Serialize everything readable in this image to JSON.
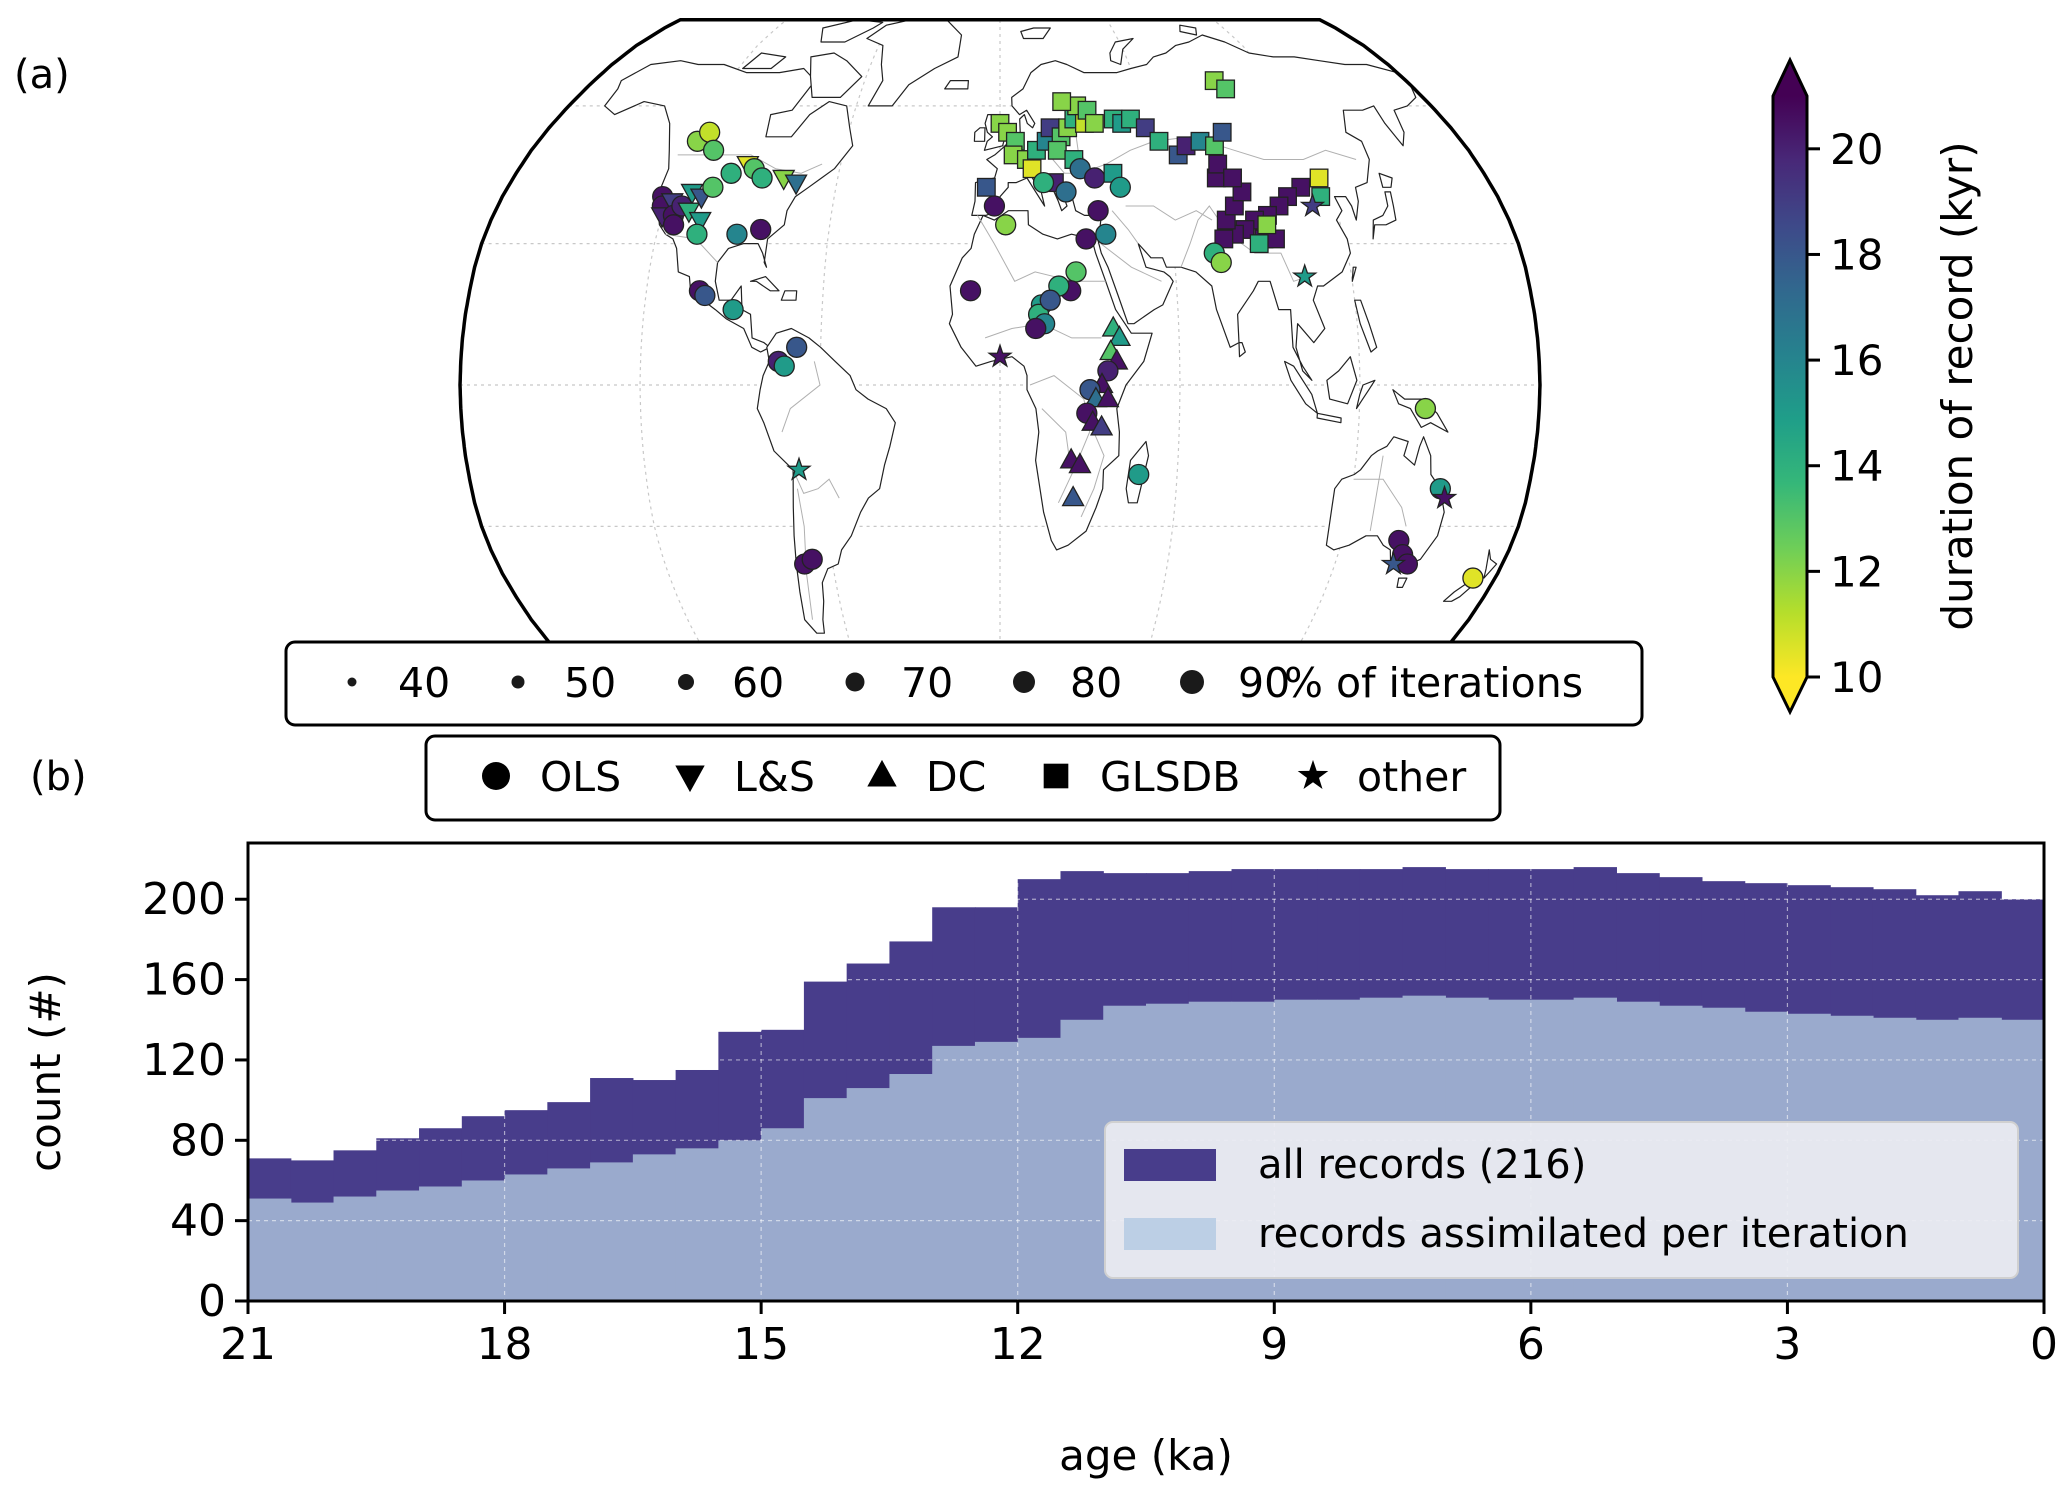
{
  "panel_a": {
    "label": "(a)",
    "size_legend": {
      "items": [
        {
          "label": "40",
          "value": 40
        },
        {
          "label": "50",
          "value": 50
        },
        {
          "label": "60",
          "value": 60
        },
        {
          "label": "70",
          "value": 70
        },
        {
          "label": "80",
          "value": 80
        },
        {
          "label": "90",
          "value": 90
        }
      ],
      "suffix": "% of iterations"
    },
    "marker_legend": [
      {
        "label": "OLS",
        "shape": "circle"
      },
      {
        "label": "L&S",
        "shape": "triangle-down"
      },
      {
        "label": "DC",
        "shape": "triangle-up"
      },
      {
        "label": "GLSDB",
        "shape": "square"
      },
      {
        "label": "other",
        "shape": "star"
      }
    ],
    "colorbar": {
      "label": "duration of record (kyr)",
      "min": 10,
      "max": 21,
      "ticks": [
        "10",
        "12",
        "14",
        "16",
        "18",
        "20"
      ],
      "colors": [
        "#fde725",
        "#b5de2b",
        "#6ece58",
        "#35b779",
        "#1f9e89",
        "#26828e",
        "#31688e",
        "#3e4989",
        "#482878",
        "#440154"
      ]
    },
    "records": [
      {
        "lon": -122,
        "lat": 40,
        "shape": "circle",
        "dur": 20.5
      },
      {
        "lon": -121,
        "lat": 38,
        "shape": "circle",
        "dur": 20.5
      },
      {
        "lon": -120,
        "lat": 36,
        "shape": "triangle-down",
        "dur": 20
      },
      {
        "lon": -118,
        "lat": 39,
        "shape": "triangle-down",
        "dur": 19
      },
      {
        "lon": -116,
        "lat": 36,
        "shape": "circle",
        "dur": 20.5
      },
      {
        "lon": -114,
        "lat": 38,
        "shape": "circle",
        "dur": 20
      },
      {
        "lon": -115,
        "lat": 34,
        "shape": "circle",
        "dur": 20.5
      },
      {
        "lon": -112,
        "lat": 41,
        "shape": "triangle-down",
        "dur": 15
      },
      {
        "lon": -111,
        "lat": 37,
        "shape": "triangle-down",
        "dur": 14
      },
      {
        "lon": -108,
        "lat": 40,
        "shape": "triangle-down",
        "dur": 18
      },
      {
        "lon": -106,
        "lat": 35,
        "shape": "triangle-down",
        "dur": 15
      },
      {
        "lon": -105,
        "lat": 42,
        "shape": "circle",
        "dur": 13
      },
      {
        "lon": -118,
        "lat": 52,
        "shape": "circle",
        "dur": 12
      },
      {
        "lon": -115,
        "lat": 54,
        "shape": "circle",
        "dur": 11
      },
      {
        "lon": -110,
        "lat": 50,
        "shape": "circle",
        "dur": 13
      },
      {
        "lon": -100,
        "lat": 45,
        "shape": "circle",
        "dur": 14
      },
      {
        "lon": -95,
        "lat": 47,
        "shape": "triangle-down",
        "dur": 10.5
      },
      {
        "lon": -92,
        "lat": 46,
        "shape": "circle",
        "dur": 13
      },
      {
        "lon": -88,
        "lat": 44,
        "shape": "circle",
        "dur": 14
      },
      {
        "lon": -80,
        "lat": 44,
        "shape": "triangle-down",
        "dur": 12
      },
      {
        "lon": -75,
        "lat": 43,
        "shape": "triangle-down",
        "dur": 17
      },
      {
        "lon": -106,
        "lat": 32,
        "shape": "circle",
        "dur": 14
      },
      {
        "lon": -92,
        "lat": 32,
        "shape": "circle",
        "dur": 16
      },
      {
        "lon": -84,
        "lat": 33,
        "shape": "circle",
        "dur": 20.5
      },
      {
        "lon": -102,
        "lat": 20,
        "shape": "circle",
        "dur": 20.5
      },
      {
        "lon": -100,
        "lat": 19,
        "shape": "circle",
        "dur": 18
      },
      {
        "lon": -90,
        "lat": 16,
        "shape": "circle",
        "dur": 15
      },
      {
        "lon": -74,
        "lat": 5,
        "shape": "circle",
        "dur": 20
      },
      {
        "lon": -72,
        "lat": 4,
        "shape": "circle",
        "dur": 15
      },
      {
        "lon": -68,
        "lat": 8,
        "shape": "circle",
        "dur": 18
      },
      {
        "lon": -68,
        "lat": -18,
        "shape": "star",
        "dur": 15
      },
      {
        "lon": -70,
        "lat": -38,
        "shape": "circle",
        "dur": 20.5
      },
      {
        "lon": -67,
        "lat": -37,
        "shape": "circle",
        "dur": 20.5
      },
      {
        "lon": -5,
        "lat": 42,
        "shape": "square",
        "dur": 18
      },
      {
        "lon": -2,
        "lat": 38,
        "shape": "circle",
        "dur": 20.5
      },
      {
        "lon": 2,
        "lat": 34,
        "shape": "circle",
        "dur": 12
      },
      {
        "lon": -10,
        "lat": 20,
        "shape": "circle",
        "dur": 20.5
      },
      {
        "lon": 0,
        "lat": 6,
        "shape": "star",
        "dur": 20.5
      },
      {
        "lon": 0,
        "lat": 56,
        "shape": "square",
        "dur": 12
      },
      {
        "lon": 3,
        "lat": 54,
        "shape": "square",
        "dur": 12
      },
      {
        "lon": 6,
        "lat": 52,
        "shape": "square",
        "dur": 13
      },
      {
        "lon": 5,
        "lat": 49,
        "shape": "square",
        "dur": 12
      },
      {
        "lon": 10,
        "lat": 48,
        "shape": "square",
        "dur": 12
      },
      {
        "lon": 12,
        "lat": 46,
        "shape": "square",
        "dur": 10.5
      },
      {
        "lon": 14,
        "lat": 50,
        "shape": "square",
        "dur": 14
      },
      {
        "lon": 18,
        "lat": 52,
        "shape": "square",
        "dur": 16
      },
      {
        "lon": 20,
        "lat": 55,
        "shape": "square",
        "dur": 19
      },
      {
        "lon": 24,
        "lat": 53,
        "shape": "square",
        "dur": 13
      },
      {
        "lon": 27,
        "lat": 55,
        "shape": "square",
        "dur": 12
      },
      {
        "lon": 30,
        "lat": 57,
        "shape": "square",
        "dur": 14
      },
      {
        "lon": 32,
        "lat": 60,
        "shape": "square",
        "dur": 12
      },
      {
        "lon": 34,
        "lat": 56,
        "shape": "square",
        "dur": 11
      },
      {
        "lon": 36,
        "lat": 59,
        "shape": "square",
        "dur": 13
      },
      {
        "lon": 38,
        "lat": 56,
        "shape": "square",
        "dur": 12
      },
      {
        "lon": 26,
        "lat": 61,
        "shape": "square",
        "dur": 12
      },
      {
        "lon": 22,
        "lat": 50,
        "shape": "square",
        "dur": 13
      },
      {
        "lon": 28,
        "lat": 48,
        "shape": "square",
        "dur": 14
      },
      {
        "lon": 30,
        "lat": 46,
        "shape": "circle",
        "dur": 17
      },
      {
        "lon": 35,
        "lat": 44,
        "shape": "circle",
        "dur": 20
      },
      {
        "lon": 42,
        "lat": 45,
        "shape": "square",
        "dur": 15
      },
      {
        "lon": 44,
        "lat": 42,
        "shape": "circle",
        "dur": 15
      },
      {
        "lon": 20,
        "lat": 43,
        "shape": "square",
        "dur": 20
      },
      {
        "lon": 24,
        "lat": 41,
        "shape": "circle",
        "dur": 17
      },
      {
        "lon": 16,
        "lat": 43,
        "shape": "circle",
        "dur": 14
      },
      {
        "lon": 35,
        "lat": 37,
        "shape": "circle",
        "dur": 20.5
      },
      {
        "lon": 30,
        "lat": 31,
        "shape": "circle",
        "dur": 20.5
      },
      {
        "lon": 37,
        "lat": 32,
        "shape": "circle",
        "dur": 16
      },
      {
        "lon": 26,
        "lat": 24,
        "shape": "circle",
        "dur": 13
      },
      {
        "lon": 24,
        "lat": 20,
        "shape": "circle",
        "dur": 20.5
      },
      {
        "lon": 20,
        "lat": 21,
        "shape": "circle",
        "dur": 14
      },
      {
        "lon": 14,
        "lat": 17,
        "shape": "circle",
        "dur": 15
      },
      {
        "lon": 13,
        "lat": 15,
        "shape": "circle",
        "dur": 14
      },
      {
        "lon": 15,
        "lat": 13,
        "shape": "circle",
        "dur": 16
      },
      {
        "lon": 17,
        "lat": 18,
        "shape": "circle",
        "dur": 18
      },
      {
        "lon": 12,
        "lat": 12,
        "shape": "circle",
        "dur": 20.5
      },
      {
        "lon": 38,
        "lat": 12,
        "shape": "triangle-up",
        "dur": 14
      },
      {
        "lon": 40,
        "lat": 10,
        "shape": "triangle-up",
        "dur": 15
      },
      {
        "lon": 37,
        "lat": 7,
        "shape": "triangle-up",
        "dur": 13
      },
      {
        "lon": 39,
        "lat": 5,
        "shape": "triangle-up",
        "dur": 20.5
      },
      {
        "lon": 36,
        "lat": 3,
        "shape": "circle",
        "dur": 20
      },
      {
        "lon": 34,
        "lat": 0,
        "shape": "triangle-up",
        "dur": 20.5
      },
      {
        "lon": 30,
        "lat": -1,
        "shape": "circle",
        "dur": 18
      },
      {
        "lon": 32,
        "lat": -3,
        "shape": "triangle-up",
        "dur": 17
      },
      {
        "lon": 36,
        "lat": -3,
        "shape": "triangle-up",
        "dur": 20.5
      },
      {
        "lon": 29,
        "lat": -6,
        "shape": "circle",
        "dur": 20.5
      },
      {
        "lon": 31,
        "lat": -8,
        "shape": "triangle-up",
        "dur": 20.5
      },
      {
        "lon": 34,
        "lat": -9,
        "shape": "triangle-up",
        "dur": 19
      },
      {
        "lon": 24,
        "lat": -16,
        "shape": "triangle-up",
        "dur": 20.5
      },
      {
        "lon": 27,
        "lat": -17,
        "shape": "triangle-up",
        "dur": 20.5
      },
      {
        "lon": 25,
        "lat": -24,
        "shape": "triangle-up",
        "dur": 18
      },
      {
        "lon": 47,
        "lat": -19,
        "shape": "circle",
        "dur": 15
      },
      {
        "lon": 46,
        "lat": 57,
        "shape": "square",
        "dur": 14
      },
      {
        "lon": 49,
        "lat": 56,
        "shape": "square",
        "dur": 15
      },
      {
        "lon": 53,
        "lat": 57,
        "shape": "square",
        "dur": 14
      },
      {
        "lon": 58,
        "lat": 55,
        "shape": "square",
        "dur": 19
      },
      {
        "lon": 62,
        "lat": 52,
        "shape": "square",
        "dur": 14
      },
      {
        "lon": 68,
        "lat": 49,
        "shape": "square",
        "dur": 18
      },
      {
        "lon": 72,
        "lat": 51,
        "shape": "square",
        "dur": 20
      },
      {
        "lon": 78,
        "lat": 52,
        "shape": "square",
        "dur": 16
      },
      {
        "lon": 83,
        "lat": 51,
        "shape": "square",
        "dur": 13
      },
      {
        "lon": 88,
        "lat": 54,
        "shape": "square",
        "dur": 18
      },
      {
        "lon": 95,
        "lat": 66,
        "shape": "square",
        "dur": 12
      },
      {
        "lon": 98,
        "lat": 64,
        "shape": "square",
        "dur": 13
      },
      {
        "lon": 118,
        "lat": 44,
        "shape": "square",
        "dur": 10.5
      },
      {
        "lon": 116,
        "lat": 40,
        "shape": "square",
        "dur": 14
      },
      {
        "lon": 112,
        "lat": 38,
        "shape": "star",
        "dur": 19
      },
      {
        "lon": 110,
        "lat": 42,
        "shape": "square",
        "dur": 20.5
      },
      {
        "lon": 104,
        "lat": 40,
        "shape": "square",
        "dur": 20.5
      },
      {
        "lon": 100,
        "lat": 38,
        "shape": "square",
        "dur": 20.5
      },
      {
        "lon": 95,
        "lat": 36,
        "shape": "square",
        "dur": 20.5
      },
      {
        "lon": 90,
        "lat": 35,
        "shape": "square",
        "dur": 20.5
      },
      {
        "lon": 86,
        "lat": 33,
        "shape": "square",
        "dur": 20.5
      },
      {
        "lon": 82,
        "lat": 32,
        "shape": "square",
        "dur": 20.5
      },
      {
        "lon": 80,
        "lat": 35,
        "shape": "square",
        "dur": 20.5
      },
      {
        "lon": 78,
        "lat": 31,
        "shape": "square",
        "dur": 20.5
      },
      {
        "lon": 84,
        "lat": 38,
        "shape": "square",
        "dur": 20.5
      },
      {
        "lon": 88,
        "lat": 41,
        "shape": "square",
        "dur": 20.5
      },
      {
        "lon": 92,
        "lat": 31,
        "shape": "square",
        "dur": 20.5
      },
      {
        "lon": 96,
        "lat": 31,
        "shape": "square",
        "dur": 20.5
      },
      {
        "lon": 80,
        "lat": 44,
        "shape": "square",
        "dur": 20.5
      },
      {
        "lon": 82,
        "lat": 47,
        "shape": "square",
        "dur": 20.5
      },
      {
        "lon": 86,
        "lat": 44,
        "shape": "square",
        "dur": 20.5
      },
      {
        "lon": 90,
        "lat": 30,
        "shape": "square",
        "dur": 14
      },
      {
        "lon": 94,
        "lat": 34,
        "shape": "square",
        "dur": 12
      },
      {
        "lon": 74,
        "lat": 28,
        "shape": "circle",
        "dur": 14
      },
      {
        "lon": 76,
        "lat": 26,
        "shape": "circle",
        "dur": 12
      },
      {
        "lon": 104,
        "lat": 23,
        "shape": "star",
        "dur": 15
      },
      {
        "lon": 142,
        "lat": -5,
        "shape": "circle",
        "dur": 12
      },
      {
        "lon": 150,
        "lat": -22,
        "shape": "circle",
        "dur": 15
      },
      {
        "lon": 152,
        "lat": -24,
        "shape": "star",
        "dur": 20.5
      },
      {
        "lon": 140,
        "lat": -33,
        "shape": "circle",
        "dur": 20.5
      },
      {
        "lon": 143,
        "lat": -36,
        "shape": "circle",
        "dur": 20.5
      },
      {
        "lon": 146,
        "lat": -38,
        "shape": "circle",
        "dur": 20.5
      },
      {
        "lon": 141,
        "lat": -38,
        "shape": "star",
        "dur": 18
      },
      {
        "lon": 172,
        "lat": -41,
        "shape": "circle",
        "dur": 10.5
      }
    ]
  },
  "chart_data": {
    "type": "area",
    "panel_label": "(b)",
    "xlabel": "age (ka)",
    "ylabel": "count (#)",
    "xlim": [
      21,
      0
    ],
    "ylim": [
      0,
      228
    ],
    "xticks": [
      "21",
      "18",
      "15",
      "12",
      "9",
      "6",
      "3",
      "0"
    ],
    "yticks": [
      "0",
      "40",
      "80",
      "120",
      "160",
      "200"
    ],
    "grid": true,
    "legend_position": "lower-right",
    "x": [
      21,
      20.5,
      20,
      19.5,
      19,
      18.5,
      18,
      17.5,
      17,
      16.5,
      16,
      15.5,
      15,
      14.5,
      14,
      13.5,
      13,
      12.5,
      12,
      11.5,
      11,
      10.5,
      10,
      9.5,
      9,
      8.5,
      8,
      7.5,
      7,
      6.5,
      6,
      5.5,
      5,
      4.5,
      4,
      3.5,
      3,
      2.5,
      2,
      1.5,
      1,
      0.5
    ],
    "series": [
      {
        "name": "all records (216)",
        "color": "#483d8b",
        "values": [
          71,
          70,
          75,
          81,
          86,
          92,
          95,
          99,
          111,
          110,
          115,
          134,
          135,
          159,
          168,
          179,
          196,
          196,
          210,
          214,
          213,
          213,
          214,
          215,
          215,
          215,
          215,
          216,
          215,
          215,
          215,
          216,
          213,
          211,
          209,
          208,
          207,
          206,
          205,
          202,
          204,
          200
        ]
      },
      {
        "name": "records assimilated per iteration",
        "color": "#9aaacd",
        "values": [
          51,
          49,
          52,
          55,
          57,
          60,
          63,
          66,
          69,
          73,
          76,
          80,
          86,
          101,
          106,
          113,
          127,
          129,
          131,
          140,
          147,
          148,
          149,
          149,
          150,
          150,
          151,
          152,
          151,
          150,
          150,
          151,
          149,
          147,
          146,
          144,
          143,
          142,
          141,
          140,
          141,
          140
        ]
      }
    ]
  }
}
